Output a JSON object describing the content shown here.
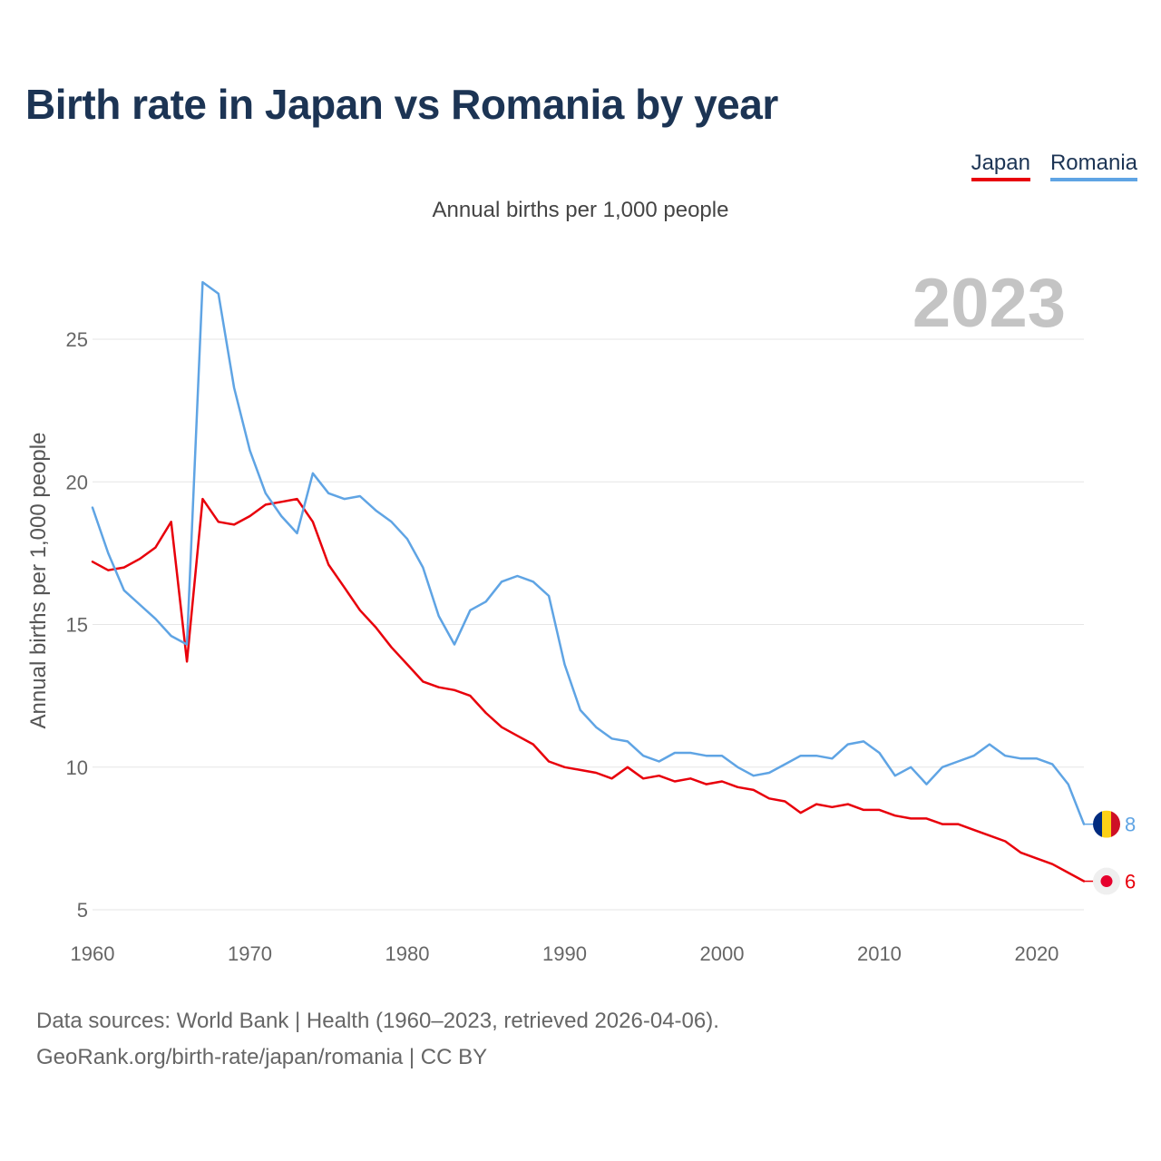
{
  "header": {
    "title": "Birth rate in Japan vs Romania by year",
    "subtitle": "Annual births per 1,000 people"
  },
  "legend": {
    "japan": "Japan",
    "romania": "Romania"
  },
  "footer": {
    "line1": "Data sources: World Bank | Health (1960–2023, retrieved 2026-04-06).",
    "line2": "GeoRank.org/birth-rate/japan/romania | CC BY"
  },
  "chart_data": {
    "type": "line",
    "title": "Birth rate in Japan vs Romania by year",
    "ylabel": "Annual births per 1,000 people",
    "xlabel": "",
    "year_label": "2023",
    "xlim": [
      1960,
      2023
    ],
    "ylim": [
      5,
      28
    ],
    "x_ticks": [
      1960,
      1970,
      1980,
      1990,
      2000,
      2010,
      2020
    ],
    "y_ticks": [
      5,
      10,
      15,
      20,
      25
    ],
    "grid": true,
    "legend_position": "top-right",
    "x": [
      1960,
      1961,
      1962,
      1963,
      1964,
      1965,
      1966,
      1967,
      1968,
      1969,
      1970,
      1971,
      1972,
      1973,
      1974,
      1975,
      1976,
      1977,
      1978,
      1979,
      1980,
      1981,
      1982,
      1983,
      1984,
      1985,
      1986,
      1987,
      1988,
      1989,
      1990,
      1991,
      1992,
      1993,
      1994,
      1995,
      1996,
      1997,
      1998,
      1999,
      2000,
      2001,
      2002,
      2003,
      2004,
      2005,
      2006,
      2007,
      2008,
      2009,
      2010,
      2011,
      2012,
      2013,
      2014,
      2015,
      2016,
      2017,
      2018,
      2019,
      2020,
      2021,
      2022,
      2023
    ],
    "series": [
      {
        "name": "Japan",
        "color": "#e8000b",
        "end_label": "6",
        "values": [
          17.2,
          16.9,
          17.0,
          17.3,
          17.7,
          18.6,
          13.7,
          19.4,
          18.6,
          18.5,
          18.8,
          19.2,
          19.3,
          19.4,
          18.6,
          17.1,
          16.3,
          15.5,
          14.9,
          14.2,
          13.6,
          13.0,
          12.8,
          12.7,
          12.5,
          11.9,
          11.4,
          11.1,
          10.8,
          10.2,
          10.0,
          9.9,
          9.8,
          9.6,
          10.0,
          9.6,
          9.7,
          9.5,
          9.6,
          9.4,
          9.5,
          9.3,
          9.2,
          8.9,
          8.8,
          8.4,
          8.7,
          8.6,
          8.7,
          8.5,
          8.5,
          8.3,
          8.2,
          8.2,
          8.0,
          8.0,
          7.8,
          7.6,
          7.4,
          7.0,
          6.8,
          6.6,
          6.3,
          6.0
        ]
      },
      {
        "name": "Romania",
        "color": "#5fa4e4",
        "end_label": "8",
        "values": [
          19.1,
          17.5,
          16.2,
          15.7,
          15.2,
          14.6,
          14.3,
          27.0,
          26.6,
          23.3,
          21.1,
          19.6,
          18.8,
          18.2,
          20.3,
          19.6,
          19.4,
          19.5,
          19.0,
          18.6,
          18.0,
          17.0,
          15.3,
          14.3,
          15.5,
          15.8,
          16.5,
          16.7,
          16.5,
          16.0,
          13.6,
          12.0,
          11.4,
          11.0,
          10.9,
          10.4,
          10.2,
          10.5,
          10.5,
          10.4,
          10.4,
          10.0,
          9.7,
          9.8,
          10.1,
          10.4,
          10.4,
          10.3,
          10.8,
          10.9,
          10.5,
          9.7,
          10.0,
          9.4,
          10.0,
          10.2,
          10.4,
          10.8,
          10.4,
          10.3,
          10.3,
          10.1,
          9.4,
          8.0
        ]
      }
    ]
  }
}
